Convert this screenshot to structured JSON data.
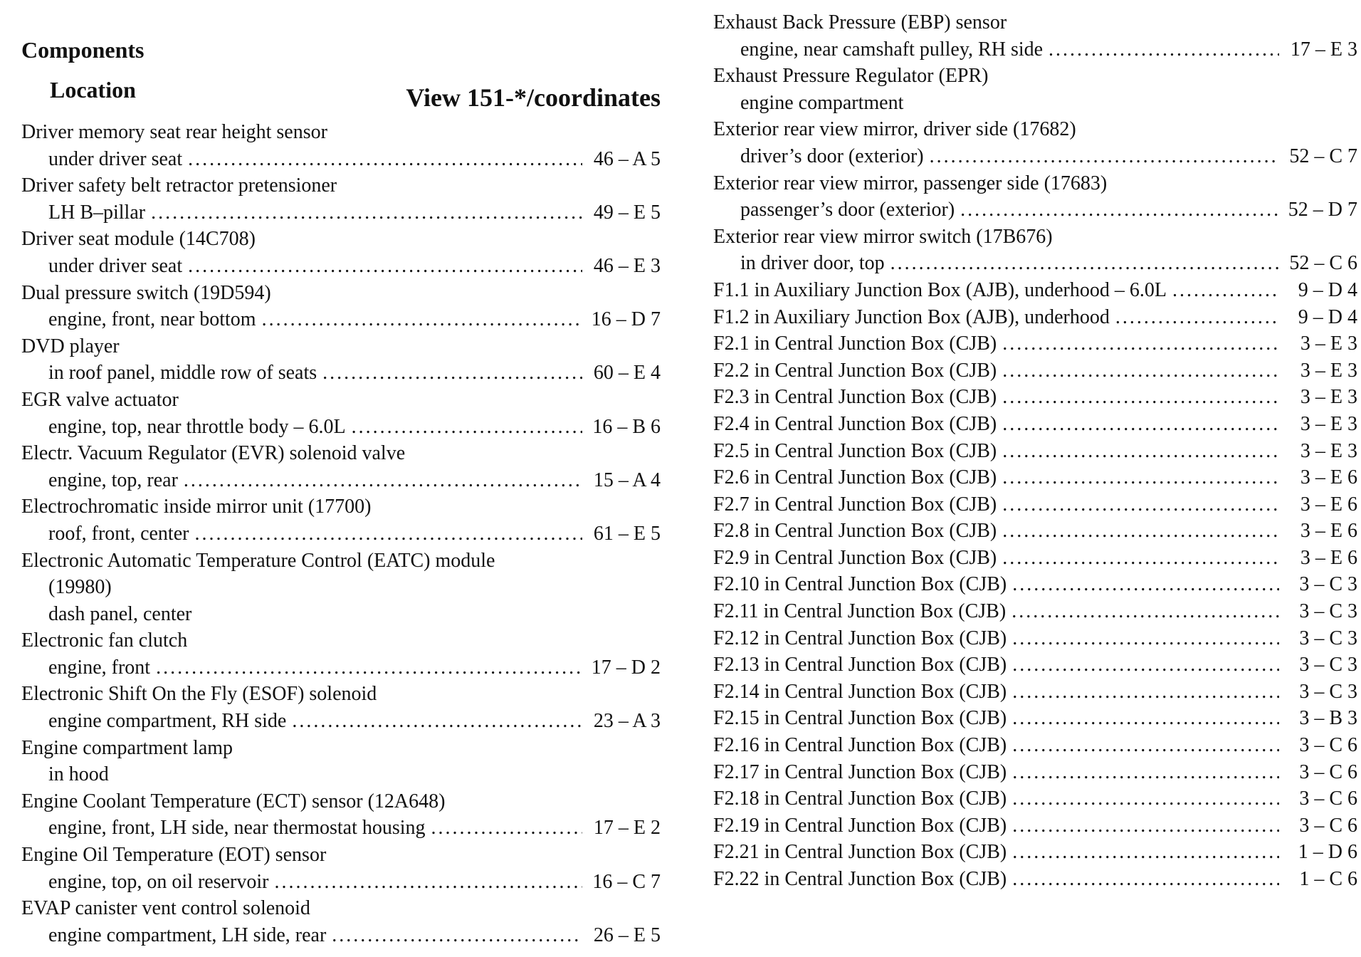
{
  "header": {
    "title": "Components",
    "location_label": "Location",
    "view_label": "View 151-*/coordinates"
  },
  "left": [
    {
      "component": "Driver memory seat rear height sensor",
      "location": "under driver seat",
      "ref": "46 – A 5"
    },
    {
      "component": "Driver safety belt retractor pretensioner",
      "location": "LH B–pillar",
      "ref": "49 – E 5"
    },
    {
      "component": "Driver seat module (14C708)",
      "location": "under driver seat",
      "ref": "46 – E 3"
    },
    {
      "component": "Dual pressure switch (19D594)",
      "location": "engine, front, near bottom",
      "ref": "16 – D 7"
    },
    {
      "component": "DVD player",
      "location": "in roof panel, middle row of seats",
      "ref": "60 – E 4"
    },
    {
      "component": "EGR valve actuator",
      "location": "engine, top, near throttle body – 6.0L",
      "ref": "16 – B 6"
    },
    {
      "component": "Electr. Vacuum Regulator (EVR) solenoid valve",
      "location": "engine, top, rear",
      "ref": "15 – A 4"
    },
    {
      "component": "Electrochromatic inside mirror unit (17700)",
      "location": "roof, front, center",
      "ref": "61 – E 5"
    },
    {
      "component": "Electronic Automatic Temperature Control (EATC) module",
      "component_cont": "(19980)",
      "location": "dash panel, center",
      "ref": ""
    },
    {
      "component": "Electronic fan clutch",
      "location": "engine, front",
      "ref": "17 – D 2"
    },
    {
      "component": "Electronic Shift On the Fly (ESOF) solenoid",
      "location": "engine compartment, RH side",
      "ref": "23 – A 3"
    },
    {
      "component": "Engine compartment lamp",
      "location": "in hood",
      "ref": ""
    },
    {
      "component": "Engine Coolant Temperature (ECT) sensor (12A648)",
      "location": "engine, front, LH side, near thermostat housing",
      "ref": "17 – E 2"
    },
    {
      "component": "Engine Oil Temperature (EOT) sensor",
      "location": "engine, top, on oil reservoir",
      "ref": "16 – C 7"
    },
    {
      "component": "EVAP canister vent control solenoid",
      "location": "engine compartment, LH side, rear",
      "ref": "26 – E 5"
    }
  ],
  "right": [
    {
      "component": "Exhaust Back Pressure (EBP) sensor",
      "location": "engine, near camshaft pulley, RH side",
      "ref": "17 – E 3"
    },
    {
      "component": "Exhaust Pressure Regulator (EPR)",
      "location": "engine compartment",
      "ref": ""
    },
    {
      "component": "Exterior rear view mirror, driver side (17682)",
      "location": "driver’s door (exterior)",
      "ref": "52 – C 7"
    },
    {
      "component": "Exterior rear view mirror, passenger side (17683)",
      "location": "passenger’s door (exterior)",
      "ref": "52 – D 7"
    },
    {
      "component": "Exterior rear view mirror switch (17B676)",
      "location": "in driver door, top",
      "ref": "52 – C 6"
    },
    {
      "component": "F1.1 in Auxiliary Junction Box (AJB), underhood – 6.0L",
      "ref": "9 – D 4"
    },
    {
      "component": "F1.2 in Auxiliary Junction Box (AJB), underhood",
      "ref": "9 – D 4"
    },
    {
      "component": "F2.1 in Central Junction Box (CJB)",
      "ref": "3 – E 3"
    },
    {
      "component": "F2.2 in Central Junction Box (CJB)",
      "ref": "3 – E 3"
    },
    {
      "component": "F2.3 in Central Junction Box (CJB)",
      "ref": "3 – E 3"
    },
    {
      "component": "F2.4 in Central Junction Box (CJB)",
      "ref": "3 – E 3"
    },
    {
      "component": "F2.5 in Central Junction Box (CJB)",
      "ref": "3 – E 3"
    },
    {
      "component": "F2.6 in Central Junction Box (CJB)",
      "ref": "3 – E 6"
    },
    {
      "component": "F2.7 in Central Junction Box (CJB)",
      "ref": "3 – E 6"
    },
    {
      "component": "F2.8 in Central Junction Box (CJB)",
      "ref": "3 – E 6"
    },
    {
      "component": "F2.9 in Central Junction Box (CJB)",
      "ref": "3 – E 6"
    },
    {
      "component": "F2.10 in Central Junction Box (CJB)",
      "ref": "3 – C 3"
    },
    {
      "component": "F2.11 in Central Junction Box (CJB)",
      "ref": "3 – C 3"
    },
    {
      "component": "F2.12 in Central Junction Box (CJB)",
      "ref": "3 – C 3"
    },
    {
      "component": "F2.13 in Central Junction Box (CJB)",
      "ref": "3 – C 3"
    },
    {
      "component": "F2.14 in Central Junction Box (CJB)",
      "ref": "3 – C 3"
    },
    {
      "component": "F2.15 in Central Junction Box (CJB)",
      "ref": "3 – B 3"
    },
    {
      "component": "F2.16 in Central Junction Box (CJB)",
      "ref": "3 – C 6"
    },
    {
      "component": "F2.17 in Central Junction Box (CJB)",
      "ref": "3 – C 6"
    },
    {
      "component": "F2.18 in Central Junction Box (CJB)",
      "ref": "3 – C 6"
    },
    {
      "component": "F2.19 in Central Junction Box (CJB)",
      "ref": "3 – C 6"
    },
    {
      "component": "F2.21 in Central Junction Box (CJB)",
      "ref": "1 – D 6"
    },
    {
      "component": "F2.22 in Central Junction Box (CJB)",
      "ref": "1 – C 6"
    }
  ]
}
